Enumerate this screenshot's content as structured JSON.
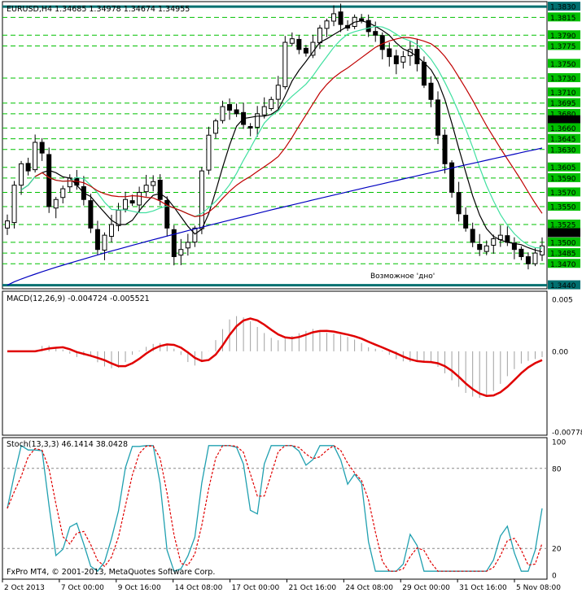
{
  "header": {
    "main_title": "EURUSD,H4  1.34685 1.34978 1.34674 1.34955",
    "macd_title": "MACD(12,26,9) -0.004724 -0.005521",
    "stoch_title": "Stoch(13,3,3) 46.1414 38.0428",
    "copyright": "FxPro MT4, © 2001-2013, MetaQuotes Software Corp.",
    "annotation": "Возможное 'дно'"
  },
  "colors": {
    "background": "#ffffff",
    "candle": "#000000",
    "grid": "#00c000",
    "support": "#007070",
    "ma_fast": "#000000",
    "ma_mid": "#40e0a0",
    "ma_slow": "#c00000",
    "ma_long": "#0000c0",
    "macd_hist": "#a0a0a0",
    "macd_signal": "#e00000",
    "stoch_main": "#20a0b0",
    "stoch_signal": "#e00000",
    "annotation_text": "#0000c0"
  },
  "chart_data": [
    {
      "type": "candlestick",
      "symbol": "EURUSD",
      "timeframe": "H4",
      "ylim": [
        1.3435,
        1.3837
      ],
      "price_axis_labels": [
        1.383,
        1.3815,
        1.379,
        1.3775,
        1.375,
        1.373,
        1.371,
        1.3695,
        1.368,
        1.3671,
        1.366,
        1.3645,
        1.363,
        1.3605,
        1.359,
        1.357,
        1.355,
        1.3525,
        1.3513,
        1.35,
        1.3485,
        1.347,
        1.344
      ],
      "highlighted_labels": [
        1.383,
        1.3671,
        1.3513,
        1.344
      ],
      "dashed_levels": [
        1.3815,
        1.379,
        1.3775,
        1.373,
        1.3695,
        1.368,
        1.366,
        1.3645,
        1.363,
        1.3605,
        1.359,
        1.357,
        1.355,
        1.3525,
        1.35,
        1.3485,
        1.347
      ],
      "solid_levels": [
        1.383,
        1.344
      ],
      "x_labels": [
        "2 Oct 2013",
        "7 Oct 00:00",
        "9 Oct 16:00",
        "14 Oct 08:00",
        "17 Oct 00:00",
        "21 Oct 16:00",
        "24 Oct 08:00",
        "29 Oct 00:00",
        "31 Oct 16:00",
        "5 Nov 08:00"
      ],
      "close_path": [
        1.353,
        1.358,
        1.361,
        1.36,
        1.364,
        1.3625,
        1.355,
        1.356,
        1.3575,
        1.359,
        1.358,
        1.356,
        1.352,
        1.349,
        1.351,
        1.3525,
        1.3545,
        1.356,
        1.3555,
        1.357,
        1.358,
        1.3585,
        1.356,
        1.352,
        1.348,
        1.349,
        1.35,
        1.352,
        1.36,
        1.365,
        1.367,
        1.369,
        1.3685,
        1.368,
        1.3665,
        1.366,
        1.368,
        1.369,
        1.37,
        1.372,
        1.378,
        1.3785,
        1.377,
        1.3765,
        1.378,
        1.38,
        1.381,
        1.382,
        1.3805,
        1.38,
        1.3815,
        1.381,
        1.3795,
        1.379,
        1.377,
        1.376,
        1.375,
        1.376,
        1.377,
        1.375,
        1.372,
        1.37,
        1.365,
        1.361,
        1.357,
        1.354,
        1.352,
        1.35,
        1.349,
        1.3495,
        1.3505,
        1.351,
        1.35,
        1.349,
        1.348,
        1.347,
        1.3485,
        1.3495
      ]
    },
    {
      "type": "macd",
      "params": "12,26,9",
      "main": -0.004724,
      "signal": -0.005521,
      "axis_labels": [
        0.005,
        0.0,
        -0.00778
      ],
      "ylim": [
        -0.0081,
        0.0058
      ]
    },
    {
      "type": "stochastic",
      "params": "13,3,3",
      "main": 46.1414,
      "signal": 38.0428,
      "axis_labels": [
        100,
        80,
        20,
        0
      ],
      "levels": [
        80,
        20
      ],
      "ylim": [
        -3,
        103
      ]
    }
  ]
}
